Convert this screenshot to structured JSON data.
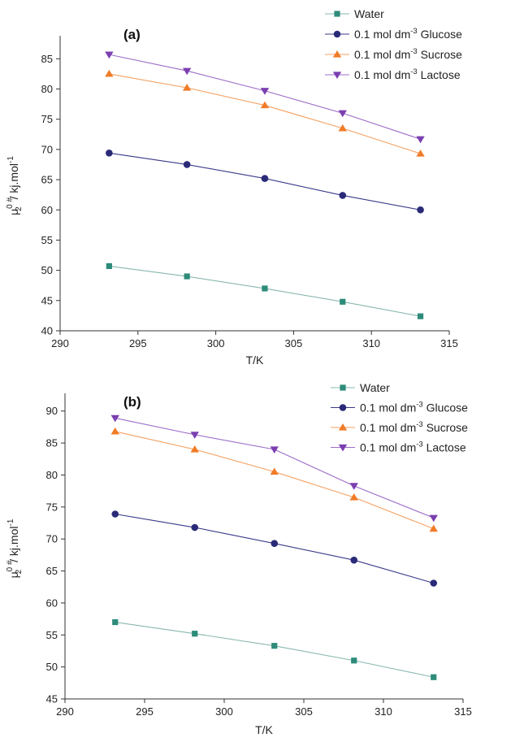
{
  "chart_data": [
    {
      "type": "line",
      "panel_label": "(a)",
      "xlabel": "T/K",
      "ylabel": {
        "base": "μ",
        "sup": "0 #",
        "sub": "2",
        "tail": "/ kj.mol",
        "tail_sup": "-1"
      },
      "xlim": [
        290,
        315
      ],
      "ylim": [
        40,
        88
      ],
      "xticks": [
        290,
        295,
        300,
        305,
        310,
        315
      ],
      "yticks": [
        40,
        45,
        50,
        55,
        60,
        65,
        70,
        75,
        80,
        85
      ],
      "x": [
        293.15,
        298.15,
        303.15,
        308.15,
        313.15
      ],
      "legend_position": "top-right",
      "grid": false,
      "series": [
        {
          "name": "Water",
          "legend": {
            "main": "Water",
            "sup": "",
            "tail": ""
          },
          "marker": "square",
          "color": "#2e8b7a",
          "line_color": "#8ab8b0",
          "values": [
            50.7,
            49.0,
            47.0,
            44.8,
            42.4
          ]
        },
        {
          "name": "0.1 mol dm-3 Glucose",
          "legend": {
            "main": "0.1 mol dm",
            "sup": "-3",
            "tail": " Glucose"
          },
          "marker": "circle",
          "color": "#2a2a78",
          "line_color": "#3a3a8a",
          "values": [
            69.4,
            67.5,
            65.2,
            62.4,
            60.0
          ]
        },
        {
          "name": "0.1 mol dm-3 Sucrose",
          "legend": {
            "main": "0.1 mol dm",
            "sup": "-3",
            "tail": " Sucrose"
          },
          "marker": "triangle-up",
          "color": "#f07c28",
          "line_color": "#f4a060",
          "values": [
            82.5,
            80.2,
            77.3,
            73.5,
            69.3
          ]
        },
        {
          "name": "0.1 mol dm-3 Lactose",
          "legend": {
            "main": "0.1 mol dm",
            "sup": "-3",
            "tail": " Lactose"
          },
          "marker": "triangle-down",
          "color": "#7b3fb0",
          "line_color": "#9c6cc8",
          "values": [
            85.7,
            83.0,
            79.7,
            76.0,
            71.7
          ]
        }
      ]
    },
    {
      "type": "line",
      "panel_label": "(b)",
      "xlabel": "T/K",
      "ylabel": {
        "base": "μ",
        "sup": "0 #",
        "sub": "2",
        "tail": "/ kj.mol",
        "tail_sup": "-1"
      },
      "xlim": [
        290,
        315
      ],
      "ylim": [
        45,
        92
      ],
      "xticks": [
        290,
        295,
        300,
        305,
        310,
        315
      ],
      "yticks": [
        45,
        50,
        55,
        60,
        65,
        70,
        75,
        80,
        85,
        90
      ],
      "x": [
        293.15,
        298.15,
        303.15,
        308.15,
        313.15
      ],
      "legend_position": "top-right",
      "grid": false,
      "series": [
        {
          "name": "Water",
          "legend": {
            "main": "Water",
            "sup": "",
            "tail": ""
          },
          "marker": "square",
          "color": "#2e8b7a",
          "line_color": "#8ab8b0",
          "values": [
            57.0,
            55.2,
            53.3,
            51.0,
            48.4
          ]
        },
        {
          "name": "0.1 mol dm-3 Glucose",
          "legend": {
            "main": "0.1 mol dm",
            "sup": "-3",
            "tail": " Glucose"
          },
          "marker": "circle",
          "color": "#2a2a78",
          "line_color": "#3a3a8a",
          "values": [
            73.9,
            71.8,
            69.3,
            66.7,
            63.1
          ]
        },
        {
          "name": "0.1 mol dm-3 Sucrose",
          "legend": {
            "main": "0.1 mol dm",
            "sup": "-3",
            "tail": " Sucrose"
          },
          "marker": "triangle-up",
          "color": "#f07c28",
          "line_color": "#f4a060",
          "values": [
            86.8,
            84.0,
            80.5,
            76.5,
            71.6
          ]
        },
        {
          "name": "0.1 mol dm-3 Lactose",
          "legend": {
            "main": "0.1 mol dm",
            "sup": "-3",
            "tail": " Lactose"
          },
          "marker": "triangle-down",
          "color": "#7b3fb0",
          "line_color": "#9c6cc8",
          "values": [
            88.9,
            86.3,
            84.0,
            78.3,
            73.3
          ]
        }
      ]
    }
  ]
}
